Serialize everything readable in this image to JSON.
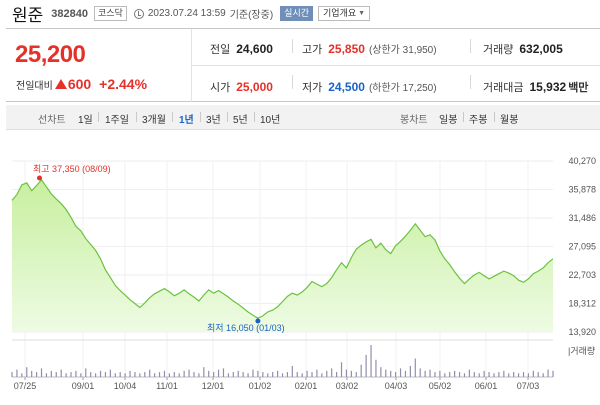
{
  "header": {
    "name": "원준",
    "code": "382840",
    "market": "코스닥",
    "datetime": "2023.07.24 13:59",
    "status": "기준(장중)",
    "live": "실시간",
    "company_button": "기업개요",
    "clock_icon": "clock-icon",
    "chevron_icon": "chevron-down-icon"
  },
  "summary": {
    "price": "25,200",
    "change_label": "전일대비",
    "change_direction": "up-triangle-icon",
    "change_amount": "600",
    "change_rate": "+2.44%",
    "prev_close": {
      "label": "전일",
      "value": "24,600"
    },
    "high": {
      "label": "고가",
      "value": "25,850",
      "sub": "(상한가 31,950)"
    },
    "volume": {
      "label": "거래량",
      "value": "632,005"
    },
    "open": {
      "label": "시가",
      "value": "25,000"
    },
    "low": {
      "label": "저가",
      "value": "24,500",
      "sub": "(하한가 17,250)"
    },
    "trade_value": {
      "label": "거래대금",
      "value": "15,932",
      "unit": "백만"
    }
  },
  "periods": {
    "chart_label": "선차트",
    "items": [
      "1일",
      "1주일",
      "3개월",
      "1년",
      "3년",
      "5년",
      "10년"
    ],
    "active": "1년",
    "candle_label": "봉차트",
    "candle_items": [
      "일봉",
      "주봉",
      "월봉"
    ]
  },
  "colors": {
    "up": "#e4312a",
    "down": "#1a63c7",
    "line": "#6bc23f",
    "fill_top": "#c7ef9f",
    "fill_bottom": "#eefbe3",
    "volume_bar": "#8e8fae"
  },
  "chart_data": {
    "type": "area",
    "x_ticks": [
      "07/25",
      "09/01",
      "10/04",
      "11/01",
      "12/01",
      "01/02",
      "02/01",
      "03/02",
      "04/03",
      "05/02",
      "06/01",
      "07/03"
    ],
    "y_ticks": [
      "40,270",
      "35,878",
      "31,486",
      "27,095",
      "22,703",
      "18,312",
      "13,920"
    ],
    "ylim": [
      13920,
      40270
    ],
    "max_annotation": "최고 37,350 (08/09)",
    "min_annotation": "최저 16,050 (01/03)",
    "max_value": 37350,
    "min_value": 16050,
    "volume_label": "거래량",
    "price_series": [
      34200,
      35100,
      36600,
      36900,
      35700,
      36500,
      37350,
      36300,
      35200,
      34400,
      33700,
      32800,
      31600,
      30200,
      29500,
      28300,
      27400,
      26500,
      25200,
      23500,
      22300,
      21100,
      20300,
      19600,
      18900,
      18300,
      17700,
      18400,
      19200,
      19800,
      20200,
      20600,
      20100,
      19500,
      19900,
      20400,
      19800,
      19300,
      18700,
      19600,
      20400,
      19900,
      20300,
      19800,
      19300,
      18700,
      18200,
      17600,
      17000,
      16500,
      16050,
      16400,
      17000,
      17300,
      17800,
      18600,
      19400,
      19900,
      19600,
      20100,
      20800,
      21700,
      21300,
      20900,
      21400,
      22300,
      23500,
      24600,
      23800,
      25400,
      26700,
      27300,
      27800,
      28200,
      26900,
      27600,
      26600,
      26000,
      27200,
      27900,
      28700,
      29600,
      30600,
      29600,
      28600,
      28900,
      28100,
      26400,
      25200,
      24300,
      23200,
      22200,
      21400,
      22100,
      22700,
      23100,
      22600,
      22100,
      22500,
      22900,
      23300,
      23000,
      22600,
      21900,
      21600,
      22100,
      22900,
      23300,
      23800,
      24600,
      25200
    ],
    "volume_series": [
      4,
      6,
      3,
      8,
      5,
      4,
      7,
      3,
      5,
      4,
      6,
      3,
      4,
      5,
      3,
      7,
      4,
      3,
      5,
      4,
      6,
      3,
      4,
      3,
      5,
      4,
      3,
      4,
      6,
      3,
      4,
      5,
      3,
      4,
      3,
      5,
      6,
      4,
      3,
      8,
      5,
      4,
      6,
      7,
      3,
      4,
      5,
      4,
      3,
      6,
      5,
      4,
      3,
      4,
      5,
      3,
      4,
      9,
      4,
      3,
      5,
      4,
      6,
      3,
      5,
      7,
      4,
      12,
      6,
      5,
      4,
      10,
      18,
      26,
      14,
      8,
      6,
      5,
      4,
      7,
      5,
      9,
      15,
      7,
      5,
      6,
      4,
      5,
      3,
      4,
      5,
      4,
      3,
      6,
      4,
      3,
      5,
      4,
      3,
      4,
      5,
      3,
      4,
      3,
      4,
      3,
      5,
      4,
      3,
      6,
      5
    ]
  }
}
